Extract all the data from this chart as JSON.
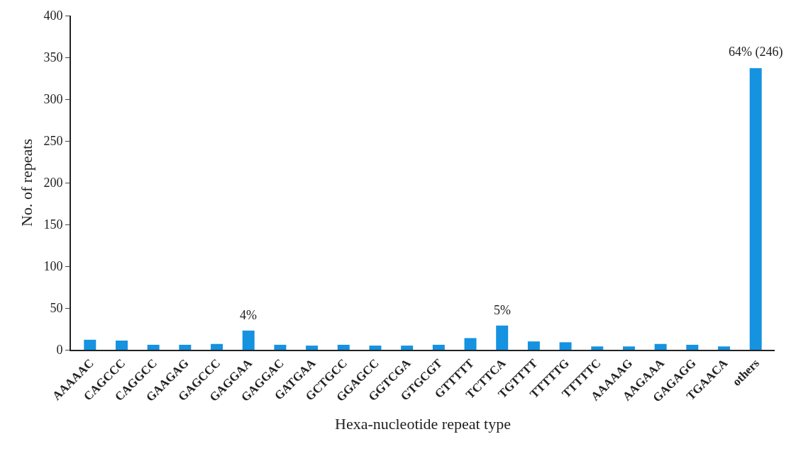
{
  "chart_data": {
    "type": "bar",
    "xlabel": "Hexa-nucleotide repeat type",
    "ylabel": "No. of repeats",
    "categories": [
      "AAAAAC",
      "CAGCCC",
      "CAGGCC",
      "GAAGAG",
      "GAGCCC",
      "GAGGAA",
      "GAGGAC",
      "GATGAA",
      "GCTGCC",
      "GGAGCC",
      "GGTCGA",
      "GTGCGT",
      "GTTTTT",
      "TCTTCA",
      "TGTTTT",
      "TTTTTG",
      "TTTTTC",
      "AAAAAG",
      "AAGAAA",
      "GAGAGG",
      "TGAACA",
      "others"
    ],
    "values": [
      12,
      11,
      6,
      6,
      7,
      23,
      6,
      5,
      6,
      5,
      5,
      6,
      14,
      29,
      10,
      9,
      4,
      4,
      7,
      6,
      4,
      337
    ],
    "annotations": [
      {
        "text": "4%",
        "x": "GAGGAA",
        "y": 23
      },
      {
        "text": "5%",
        "x": "TCTTCA",
        "y": 29
      },
      {
        "text": "64% (246)",
        "x": "others",
        "y": 337
      }
    ],
    "color": "#1592e0",
    "ylim": [
      0,
      400
    ],
    "yticks": [
      0,
      50,
      100,
      150,
      200,
      250,
      300,
      350,
      400
    ],
    "grid": false,
    "legend": false
  }
}
